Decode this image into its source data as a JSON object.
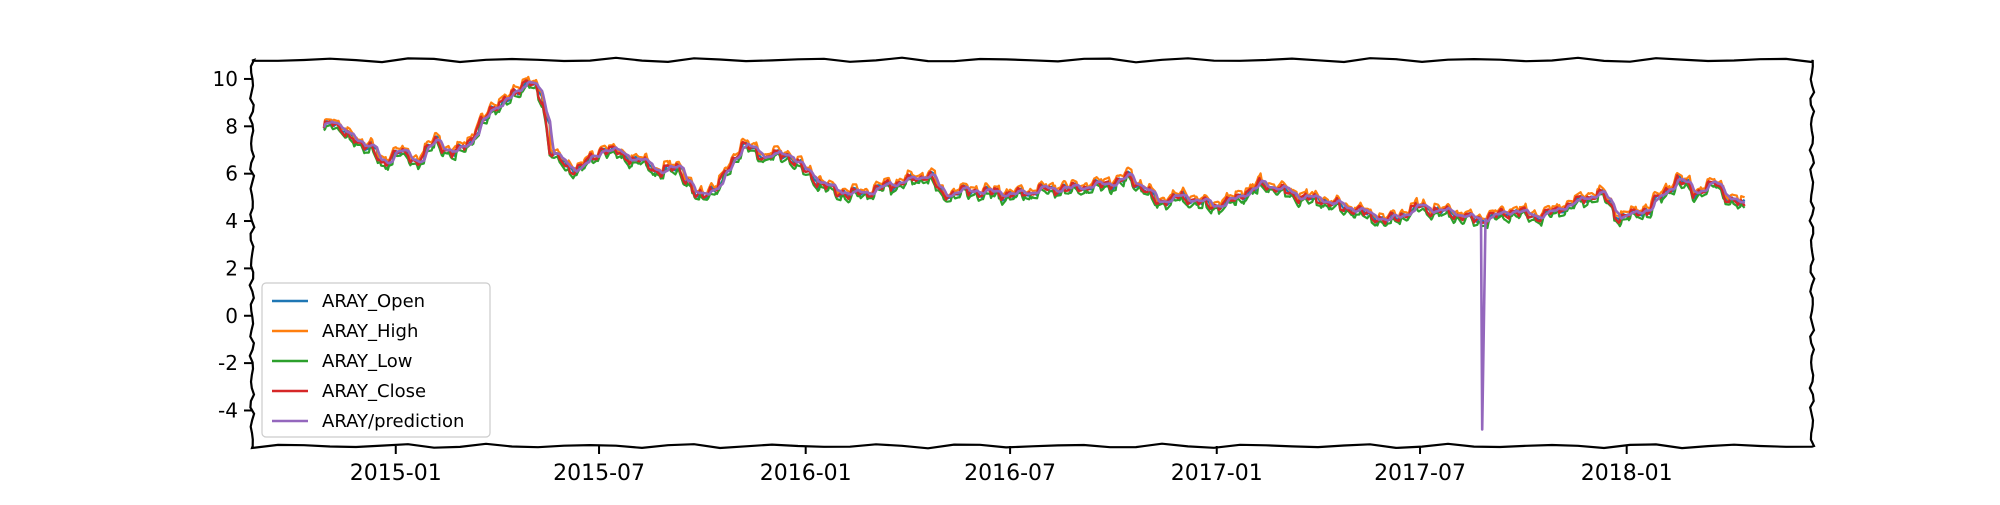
{
  "chart_data": {
    "type": "line",
    "title": "",
    "xlabel": "",
    "ylabel": "",
    "x_start": "2014-10-29",
    "x_end": "2018-04-16",
    "xlim": [
      "2014-08-26",
      "2018-06-15"
    ],
    "ylim": [
      -5.5,
      10.8
    ],
    "yticks": [
      10,
      8,
      6,
      4,
      2,
      0,
      -2,
      -4
    ],
    "ytick_labels": [
      "10",
      "8",
      "6",
      "4",
      "2",
      "0",
      "-2",
      "-4"
    ],
    "xticks": [
      "2015-01-01",
      "2015-07-01",
      "2016-01-01",
      "2016-07-01",
      "2017-01-01",
      "2017-07-01",
      "2018-01-01"
    ],
    "xtick_labels": [
      "2015-01",
      "2015-07",
      "2016-01",
      "2016-07",
      "2017-01",
      "2017-07",
      "2018-01"
    ],
    "grid": false,
    "legend_position": "lower-left",
    "close_anchors": [
      [
        "2014-10-29",
        7.9
      ],
      [
        "2014-11-05",
        8.3
      ],
      [
        "2014-11-20",
        7.5
      ],
      [
        "2014-12-10",
        7.1
      ],
      [
        "2014-12-20",
        6.3
      ],
      [
        "2015-01-01",
        7.0
      ],
      [
        "2015-01-20",
        6.5
      ],
      [
        "2015-02-05",
        7.4
      ],
      [
        "2015-02-20",
        6.8
      ],
      [
        "2015-03-10",
        7.5
      ],
      [
        "2015-03-25",
        8.7
      ],
      [
        "2015-04-15",
        9.3
      ],
      [
        "2015-04-28",
        10.0
      ],
      [
        "2015-05-06",
        9.5
      ],
      [
        "2015-05-12",
        9.0
      ],
      [
        "2015-05-18",
        7.0
      ],
      [
        "2015-06-05",
        6.1
      ],
      [
        "2015-06-25",
        6.6
      ],
      [
        "2015-07-05",
        7.1
      ],
      [
        "2015-08-01",
        6.6
      ],
      [
        "2015-08-25",
        6.1
      ],
      [
        "2015-09-10",
        6.3
      ],
      [
        "2015-09-25",
        5.0
      ],
      [
        "2015-10-15",
        5.5
      ],
      [
        "2015-11-05",
        7.2
      ],
      [
        "2015-11-25",
        6.7
      ],
      [
        "2015-12-15",
        6.8
      ],
      [
        "2016-01-05",
        5.9
      ],
      [
        "2016-01-25",
        5.3
      ],
      [
        "2016-02-15",
        5.1
      ],
      [
        "2016-03-15",
        5.5
      ],
      [
        "2016-04-10",
        5.8
      ],
      [
        "2016-04-20",
        6.0
      ],
      [
        "2016-05-01",
        5.1
      ],
      [
        "2016-06-01",
        5.3
      ],
      [
        "2016-07-01",
        5.1
      ],
      [
        "2016-08-01",
        5.3
      ],
      [
        "2016-09-01",
        5.4
      ],
      [
        "2016-10-01",
        5.6
      ],
      [
        "2016-10-15",
        5.9
      ],
      [
        "2016-11-10",
        4.8
      ],
      [
        "2016-12-01",
        5.0
      ],
      [
        "2017-01-01",
        4.6
      ],
      [
        "2017-01-20",
        5.0
      ],
      [
        "2017-02-10",
        5.6
      ],
      [
        "2017-03-10",
        5.1
      ],
      [
        "2017-04-01",
        4.9
      ],
      [
        "2017-05-01",
        4.5
      ],
      [
        "2017-06-01",
        4.0
      ],
      [
        "2017-07-01",
        4.6
      ],
      [
        "2017-08-01",
        4.3
      ],
      [
        "2017-08-20",
        4.0
      ],
      [
        "2017-09-20",
        4.4
      ],
      [
        "2017-10-15",
        4.2
      ],
      [
        "2017-11-01",
        4.5
      ],
      [
        "2017-11-20",
        4.9
      ],
      [
        "2017-12-10",
        5.2
      ],
      [
        "2017-12-25",
        4.1
      ],
      [
        "2018-01-20",
        4.5
      ],
      [
        "2018-02-15",
        5.8
      ],
      [
        "2018-03-01",
        5.2
      ],
      [
        "2018-03-20",
        5.6
      ],
      [
        "2018-04-05",
        4.8
      ],
      [
        "2018-04-16",
        4.6
      ]
    ],
    "prediction_dip": {
      "date": "2017-08-25",
      "value": -4.8
    },
    "series": [
      {
        "name": "ARAY_Open",
        "color": "#1f77b4"
      },
      {
        "name": "ARAY_High",
        "color": "#ff7f0e"
      },
      {
        "name": "ARAY_Low",
        "color": "#2ca02c"
      },
      {
        "name": "ARAY_Close",
        "color": "#d62728"
      },
      {
        "name": "ARAY/prediction",
        "color": "#9467bd"
      }
    ]
  }
}
